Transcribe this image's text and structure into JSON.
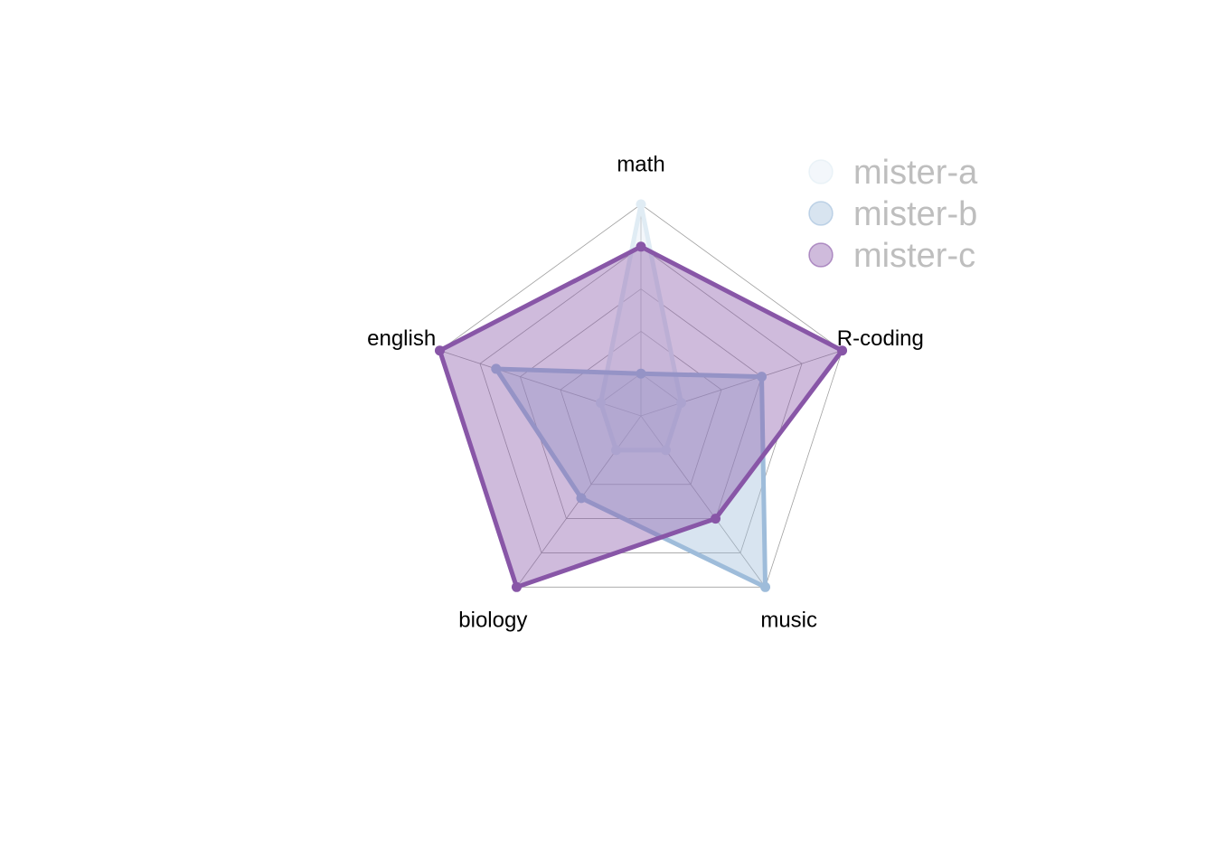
{
  "chart_data": {
    "type": "radar",
    "axes": [
      "math",
      "english",
      "biology",
      "music",
      "R-coding"
    ],
    "range": [
      0,
      20
    ],
    "segments": 4,
    "grid": true,
    "legend_position": "right",
    "series": [
      {
        "name": "mister-a",
        "values": [
          20,
          0,
          0,
          0,
          0
        ],
        "color": "#E0ECF4"
      },
      {
        "name": "mister-b",
        "values": [
          0,
          13,
          7,
          20,
          10
        ],
        "color": "#9EBCDA"
      },
      {
        "name": "mister-c",
        "values": [
          15,
          20,
          20,
          10,
          20
        ],
        "color": "#8856A7"
      }
    ],
    "grid_color": "#a0a0a0",
    "legend_text_color": "#bebebe"
  }
}
